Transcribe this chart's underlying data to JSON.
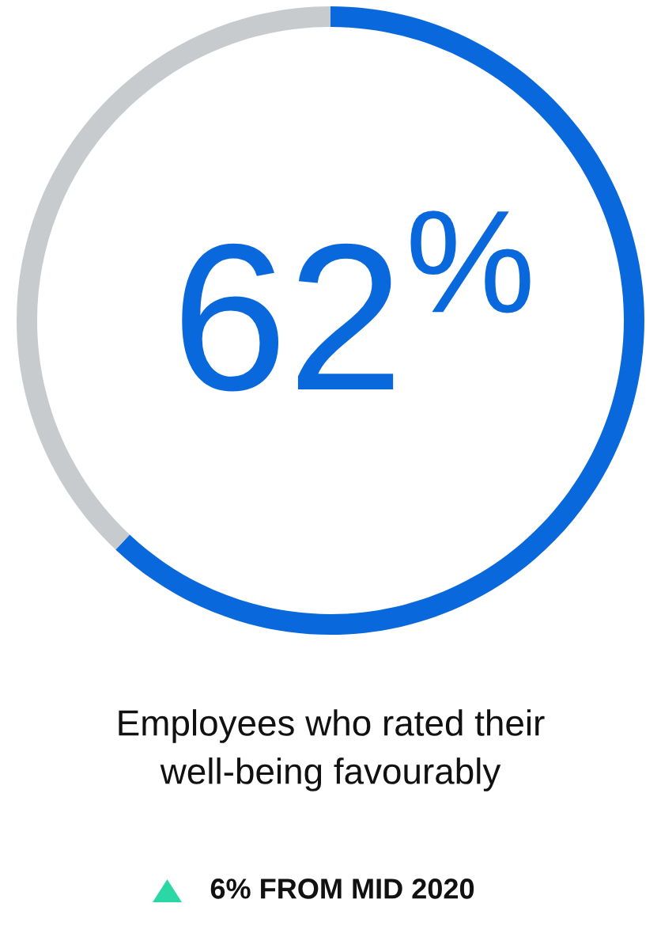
{
  "chart_data": {
    "type": "donut",
    "categories": [
      null,
      null
    ],
    "values": [
      62,
      38
    ],
    "colors": [
      "#0969dc",
      "#c8cbce"
    ],
    "value_labels": [
      "62$^{%}$",
      null
    ],
    "annotations": [
      "Employees who rated their\nwell-being favourably",
      "6% FROM MID 2020"
    ]
  }
}
